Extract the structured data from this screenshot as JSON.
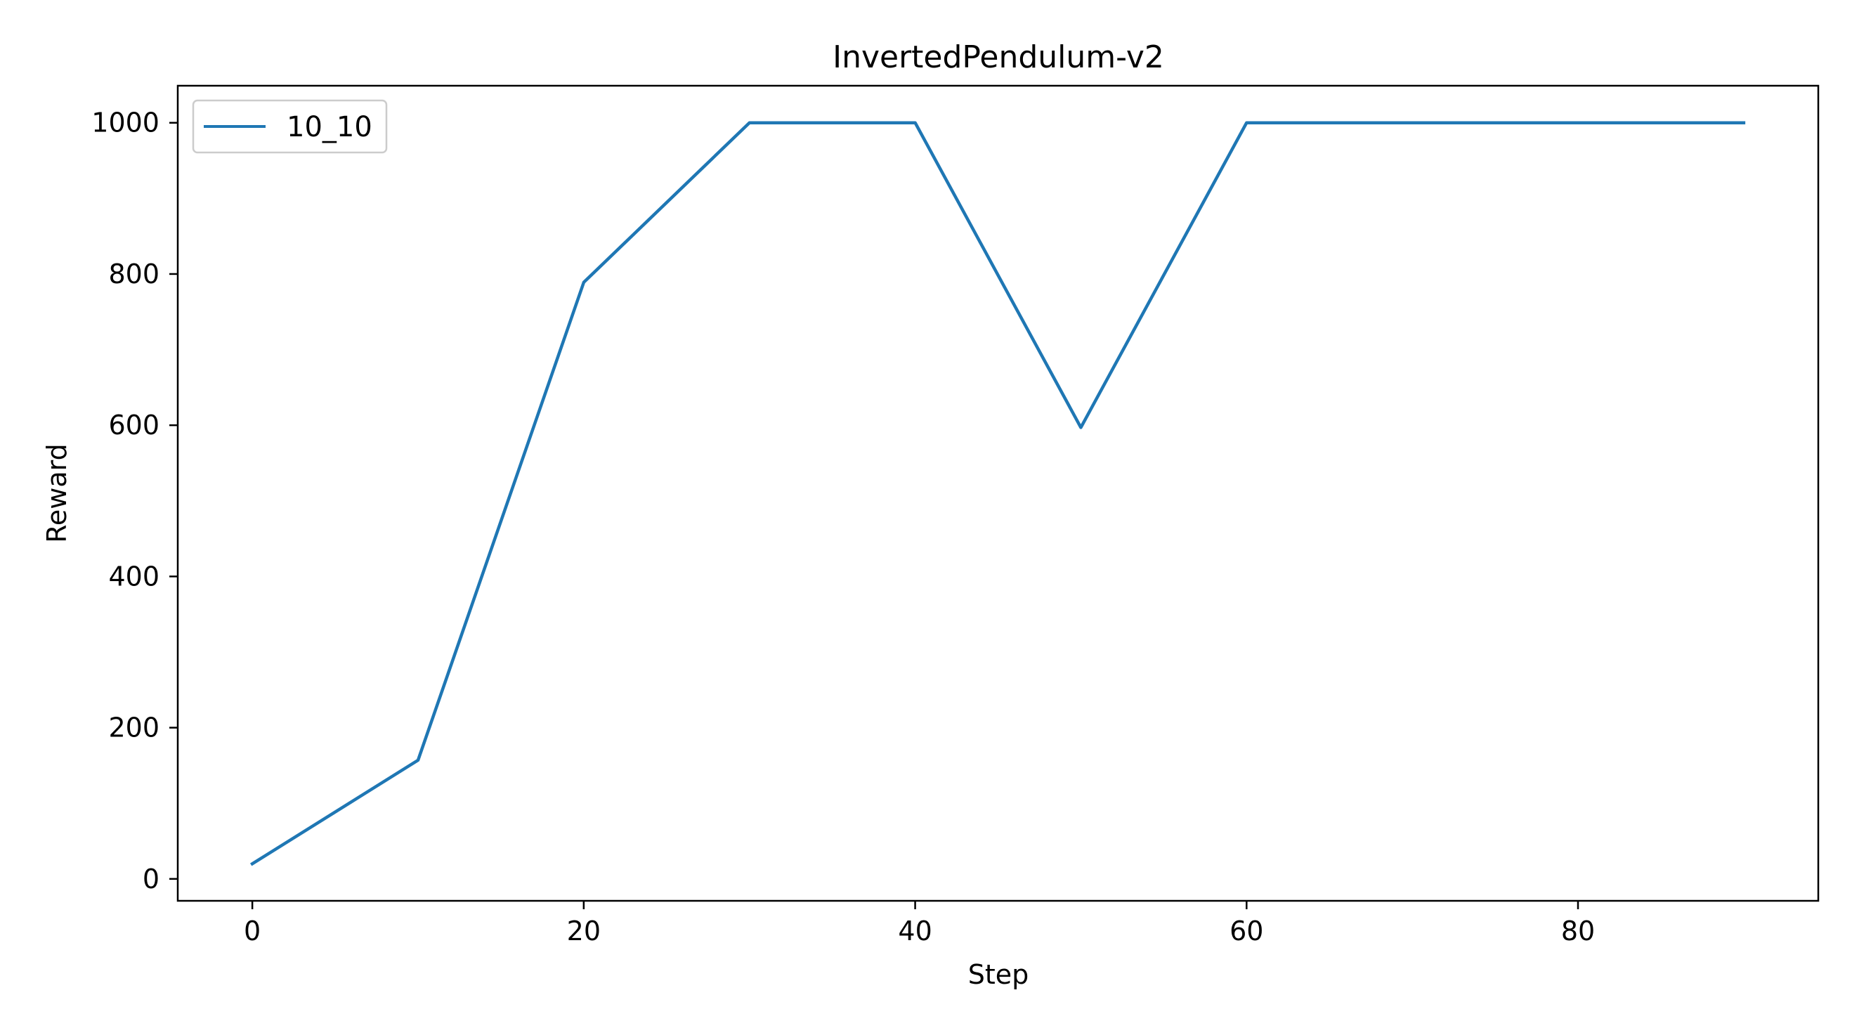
{
  "chart_data": {
    "type": "line",
    "title": "InvertedPendulum-v2",
    "xlabel": "Step",
    "ylabel": "Reward",
    "xlim": [
      -4.5,
      94.5
    ],
    "ylim": [
      -29,
      1049
    ],
    "xticks": [
      0,
      20,
      40,
      60,
      80
    ],
    "yticks": [
      0,
      200,
      400,
      600,
      800,
      1000
    ],
    "grid": false,
    "legend_position": "top-left",
    "series": [
      {
        "name": "10_10",
        "color": "#1f77b4",
        "x": [
          0,
          10,
          20,
          30,
          40,
          50,
          60,
          70,
          80,
          90
        ],
        "y": [
          20,
          157,
          789,
          1000,
          1000,
          597,
          1000,
          1000,
          1000,
          1000
        ]
      }
    ]
  }
}
